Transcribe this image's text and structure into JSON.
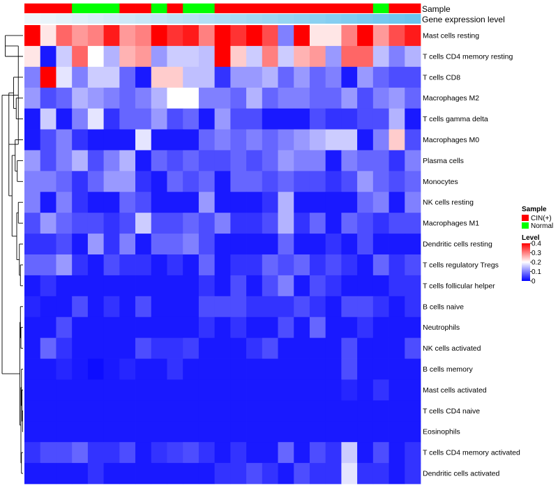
{
  "chart_data": {
    "type": "heatmap",
    "title": "",
    "annotation_labels": {
      "sample": "Sample",
      "gene": "Gene expression level"
    },
    "columns": 25,
    "sample_groups": [
      "CIN(+)",
      "CIN(+)",
      "CIN(+)",
      "Normal",
      "Normal",
      "Normal",
      "CIN(+)",
      "CIN(+)",
      "Normal",
      "CIN(+)",
      "Normal",
      "Normal",
      "CIN(+)",
      "CIN(+)",
      "CIN(+)",
      "CIN(+)",
      "CIN(+)",
      "CIN(+)",
      "CIN(+)",
      "CIN(+)",
      "CIN(+)",
      "CIN(+)",
      "Normal",
      "CIN(+)",
      "CIN(+)"
    ],
    "gene_expression_level": [
      0.02,
      0.06,
      0.1,
      0.14,
      0.18,
      0.22,
      0.26,
      0.3,
      0.34,
      0.38,
      0.42,
      0.46,
      0.5,
      0.54,
      0.58,
      0.62,
      0.66,
      0.7,
      0.74,
      0.78,
      0.82,
      0.86,
      0.9,
      0.94,
      0.98
    ],
    "rows": [
      "Mast cells resting",
      "T cells CD4 memory resting",
      "T cells CD8",
      "Macrophages M2",
      "T cells gamma delta",
      "Macrophages M0",
      "Plasma cells",
      "Monocytes",
      "NK cells resting",
      "Macrophages M1",
      "Dendritic cells resting",
      "T cells regulatory  Tregs",
      "T cells follicular helper",
      "B cells naive",
      "Neutrophils",
      "NK cells activated",
      "B cells memory",
      "Mast cells activated",
      "T cells CD4 naive",
      "Eosinophils",
      "T cells CD4 memory activated",
      "Dendritic cells activated"
    ],
    "values": [
      [
        0.4,
        0.22,
        0.32,
        0.28,
        0.3,
        0.38,
        0.28,
        0.3,
        0.4,
        0.36,
        0.38,
        0.3,
        0.4,
        0.36,
        0.4,
        0.34,
        0.1,
        0.4,
        0.22,
        0.22,
        0.3,
        0.4,
        0.28,
        0.34,
        0.38
      ],
      [
        0.22,
        0.02,
        0.16,
        0.32,
        0.2,
        0.14,
        0.26,
        0.28,
        0.12,
        0.16,
        0.16,
        0.15,
        0.4,
        0.24,
        0.16,
        0.3,
        0.16,
        0.26,
        0.28,
        0.12,
        0.32,
        0.32,
        0.15,
        0.1,
        0.14
      ],
      [
        0.1,
        0.4,
        0.18,
        0.1,
        0.16,
        0.16,
        0.08,
        0.02,
        0.24,
        0.24,
        0.15,
        0.15,
        0.04,
        0.12,
        0.12,
        0.14,
        0.08,
        0.12,
        0.08,
        0.1,
        0.02,
        0.12,
        0.08,
        0.06,
        0.06
      ],
      [
        0.12,
        0.06,
        0.08,
        0.14,
        0.12,
        0.1,
        0.08,
        0.1,
        0.14,
        0.2,
        0.2,
        0.1,
        0.1,
        0.08,
        0.14,
        0.08,
        0.1,
        0.1,
        0.08,
        0.08,
        0.12,
        0.06,
        0.1,
        0.12,
        0.08
      ],
      [
        0.02,
        0.16,
        0.02,
        0.1,
        0.18,
        0.04,
        0.08,
        0.08,
        0.12,
        0.06,
        0.08,
        0.02,
        0.12,
        0.06,
        0.06,
        0.02,
        0.02,
        0.02,
        0.06,
        0.04,
        0.04,
        0.06,
        0.06,
        0.14,
        0.02
      ],
      [
        0.02,
        0.06,
        0.1,
        0.04,
        0.02,
        0.02,
        0.02,
        0.18,
        0.02,
        0.02,
        0.02,
        0.08,
        0.1,
        0.08,
        0.1,
        0.08,
        0.1,
        0.12,
        0.14,
        0.16,
        0.16,
        0.02,
        0.1,
        0.24,
        0.06
      ],
      [
        0.12,
        0.06,
        0.1,
        0.14,
        0.06,
        0.1,
        0.14,
        0.02,
        0.08,
        0.06,
        0.08,
        0.06,
        0.06,
        0.08,
        0.06,
        0.08,
        0.12,
        0.1,
        0.1,
        0.02,
        0.1,
        0.08,
        0.08,
        0.04,
        0.1
      ],
      [
        0.1,
        0.1,
        0.08,
        0.04,
        0.08,
        0.12,
        0.12,
        0.04,
        0.02,
        0.08,
        0.06,
        0.08,
        0.02,
        0.08,
        0.08,
        0.06,
        0.08,
        0.06,
        0.06,
        0.04,
        0.06,
        0.12,
        0.08,
        0.06,
        0.08
      ],
      [
        0.1,
        0.02,
        0.1,
        0.04,
        0.02,
        0.02,
        0.08,
        0.06,
        0.02,
        0.02,
        0.02,
        0.12,
        0.02,
        0.02,
        0.02,
        0.04,
        0.14,
        0.02,
        0.02,
        0.02,
        0.02,
        0.08,
        0.1,
        0.02,
        0.1
      ],
      [
        0.06,
        0.12,
        0.08,
        0.06,
        0.06,
        0.04,
        0.06,
        0.16,
        0.06,
        0.06,
        0.08,
        0.06,
        0.1,
        0.04,
        0.04,
        0.06,
        0.14,
        0.04,
        0.08,
        0.02,
        0.08,
        0.06,
        0.04,
        0.06,
        0.06
      ],
      [
        0.04,
        0.04,
        0.06,
        0.02,
        0.12,
        0.04,
        0.1,
        0.02,
        0.08,
        0.08,
        0.1,
        0.06,
        0.02,
        0.02,
        0.02,
        0.02,
        0.08,
        0.02,
        0.02,
        0.04,
        0.02,
        0.06,
        0.02,
        0.02,
        0.02
      ],
      [
        0.08,
        0.08,
        0.12,
        0.04,
        0.02,
        0.06,
        0.04,
        0.04,
        0.02,
        0.04,
        0.02,
        0.08,
        0.02,
        0.04,
        0.04,
        0.08,
        0.06,
        0.08,
        0.04,
        0.06,
        0.04,
        0.02,
        0.08,
        0.04,
        0.06
      ],
      [
        0.02,
        0.04,
        0.02,
        0.02,
        0.02,
        0.02,
        0.02,
        0.02,
        0.02,
        0.02,
        0.02,
        0.04,
        0.02,
        0.06,
        0.02,
        0.06,
        0.1,
        0.02,
        0.06,
        0.04,
        0.02,
        0.02,
        0.02,
        0.04,
        0.04
      ],
      [
        0.03,
        0.02,
        0.02,
        0.06,
        0.02,
        0.04,
        0.02,
        0.06,
        0.02,
        0.02,
        0.02,
        0.06,
        0.06,
        0.06,
        0.04,
        0.04,
        0.04,
        0.06,
        0.04,
        0.02,
        0.06,
        0.06,
        0.04,
        0.02,
        0.04
      ],
      [
        0.02,
        0.02,
        0.06,
        0.02,
        0.02,
        0.02,
        0.02,
        0.02,
        0.02,
        0.02,
        0.02,
        0.04,
        0.02,
        0.04,
        0.02,
        0.02,
        0.06,
        0.02,
        0.08,
        0.02,
        0.02,
        0.04,
        0.02,
        0.02,
        0.02
      ],
      [
        0.02,
        0.08,
        0.04,
        0.02,
        0.02,
        0.02,
        0.02,
        0.06,
        0.04,
        0.04,
        0.05,
        0.02,
        0.02,
        0.02,
        0.04,
        0.06,
        0.02,
        0.02,
        0.02,
        0.02,
        0.06,
        0.02,
        0.02,
        0.02,
        0.06
      ],
      [
        0.02,
        0.02,
        0.03,
        0.02,
        0.01,
        0.02,
        0.03,
        0.02,
        0.02,
        0.04,
        0.02,
        0.02,
        0.02,
        0.02,
        0.02,
        0.02,
        0.02,
        0.02,
        0.02,
        0.02,
        0.06,
        0.02,
        0.02,
        0.02,
        0.02
      ],
      [
        0.02,
        0.02,
        0.02,
        0.02,
        0.02,
        0.02,
        0.02,
        0.02,
        0.02,
        0.02,
        0.02,
        0.02,
        0.02,
        0.02,
        0.02,
        0.02,
        0.02,
        0.02,
        0.02,
        0.02,
        0.03,
        0.02,
        0.04,
        0.02,
        0.02
      ],
      [
        0.02,
        0.02,
        0.02,
        0.02,
        0.02,
        0.02,
        0.02,
        0.02,
        0.02,
        0.02,
        0.02,
        0.02,
        0.02,
        0.02,
        0.02,
        0.02,
        0.02,
        0.02,
        0.02,
        0.02,
        0.02,
        0.02,
        0.02,
        0.02,
        0.02
      ],
      [
        0.02,
        0.02,
        0.02,
        0.02,
        0.02,
        0.02,
        0.02,
        0.02,
        0.02,
        0.02,
        0.02,
        0.02,
        0.02,
        0.02,
        0.02,
        0.02,
        0.02,
        0.02,
        0.02,
        0.02,
        0.02,
        0.02,
        0.02,
        0.02,
        0.02
      ],
      [
        0.04,
        0.06,
        0.06,
        0.08,
        0.04,
        0.04,
        0.06,
        0.02,
        0.04,
        0.05,
        0.06,
        0.04,
        0.02,
        0.04,
        0.02,
        0.02,
        0.08,
        0.02,
        0.06,
        0.04,
        0.16,
        0.02,
        0.06,
        0.02,
        0.04
      ],
      [
        0.02,
        0.02,
        0.02,
        0.02,
        0.04,
        0.02,
        0.02,
        0.02,
        0.02,
        0.02,
        0.02,
        0.02,
        0.04,
        0.04,
        0.06,
        0.04,
        0.02,
        0.06,
        0.04,
        0.04,
        0.18,
        0.04,
        0.04,
        0.02,
        0.04
      ]
    ],
    "legend": {
      "sample_title": "Sample",
      "sample_entries": [
        "CIN(+)",
        "Normal"
      ],
      "level_title": "Level",
      "level_ticks": [
        "0.4",
        "0.3",
        "0.2",
        "0.1",
        "0"
      ],
      "level_tick_values": [
        0.4,
        0.3,
        0.2,
        0.1,
        0
      ],
      "level_range": [
        0,
        0.4
      ],
      "placement": "right"
    },
    "colors": {
      "low": "#0000ff",
      "mid": "#ffffff",
      "high": "#ff0000",
      "cin": "#ff0000",
      "normal": "#00ff00",
      "gene_low": "#f2f7fb",
      "gene_high": "#67c3ee"
    },
    "row_dendrogram": true
  }
}
